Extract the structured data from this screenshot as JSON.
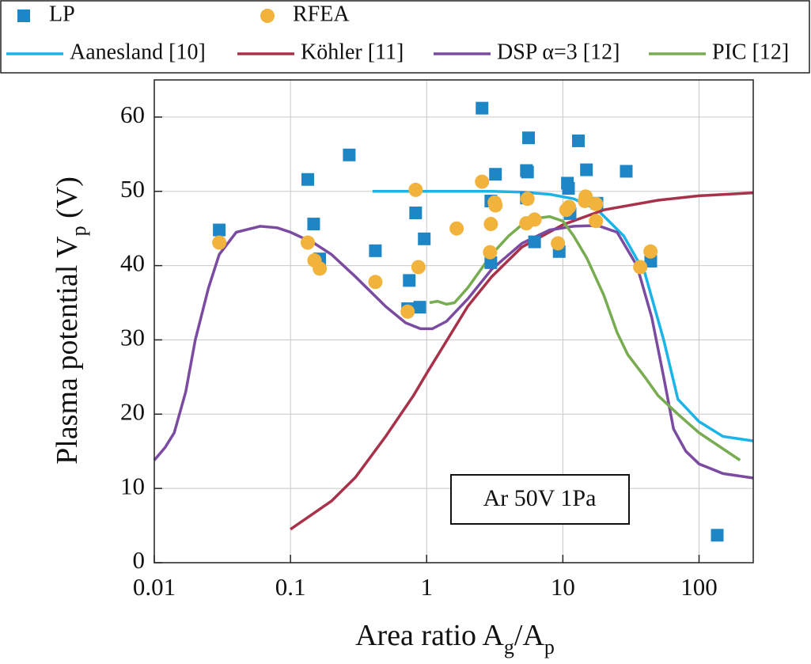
{
  "chart_data": {
    "type": "scatter",
    "xlabel": [
      "Area ratio A",
      "g",
      "/A",
      "p"
    ],
    "ylabel": [
      "Plasma potential V",
      "p",
      " (V)"
    ],
    "annotation": "Ar 50V 1Pa",
    "xscale": "log",
    "xlim": [
      0.01,
      250
    ],
    "ylim": [
      0,
      65
    ],
    "xticks": [
      0.01,
      0.1,
      1,
      10,
      100
    ],
    "yticks": [
      0,
      10,
      20,
      30,
      40,
      50,
      60
    ],
    "grid": true,
    "legend": "top",
    "series": [
      {
        "name": "LP",
        "kind": "square",
        "color": "#1f86c6",
        "x": [
          0.03,
          0.134,
          0.148,
          0.164,
          0.27,
          0.42,
          0.745,
          0.725,
          0.83,
          0.89,
          0.96,
          2.55,
          2.96,
          2.96,
          3.2,
          5.4,
          5.5,
          5.6,
          5.4,
          6.2,
          9.4,
          10.8,
          11,
          11.3,
          13,
          14.9,
          17.8,
          29.2,
          44.2,
          136
        ],
        "values": [
          44.8,
          51.6,
          45.6,
          40.9,
          54.9,
          42.0,
          38.0,
          34.2,
          47.1,
          34.4,
          43.6,
          61.2,
          48.7,
          40.4,
          52.3,
          52.8,
          52.6,
          57.2,
          49.1,
          43.2,
          41.9,
          51.1,
          50.4,
          47.0,
          56.8,
          52.9,
          48.4,
          52.7,
          40.6,
          3.7
        ]
      },
      {
        "name": "RFEA",
        "kind": "circle",
        "color": "#f2b33d",
        "x": [
          0.03,
          0.134,
          0.15,
          0.164,
          0.42,
          0.725,
          0.83,
          0.87,
          1.66,
          2.55,
          2.92,
          2.96,
          3.16,
          3.2,
          5.4,
          5.5,
          6.2,
          9.2,
          10.6,
          11.1,
          14.5,
          14.7,
          17.5,
          17.5,
          37,
          44
        ],
        "values": [
          43.1,
          43.1,
          40.7,
          39.6,
          37.8,
          33.8,
          50.2,
          39.8,
          45.0,
          51.3,
          41.8,
          45.6,
          48.5,
          48.1,
          45.7,
          49.0,
          46.2,
          43.0,
          47.5,
          47.9,
          48.7,
          49.3,
          48.3,
          46.0,
          39.8,
          41.9
        ]
      },
      {
        "name": "Aanesland [10]",
        "kind": "line",
        "color": "#1ab4e8",
        "x": [
          0.4,
          1,
          3,
          5,
          8,
          12,
          18,
          28,
          40,
          55,
          70,
          100,
          150,
          250
        ],
        "values": [
          50,
          50,
          50,
          49.9,
          49.6,
          49,
          47.5,
          44,
          39,
          30,
          22,
          19,
          17,
          16.4
        ]
      },
      {
        "name": "Köhler [11]",
        "kind": "line",
        "color": "#a8324a",
        "x": [
          0.1,
          0.2,
          0.3,
          0.5,
          0.8,
          1,
          2,
          3,
          5,
          10,
          20,
          50,
          100,
          250
        ],
        "values": [
          4.5,
          8.3,
          11.5,
          17,
          22.5,
          25.5,
          34.5,
          38.5,
          42.5,
          45.5,
          47.5,
          48.8,
          49.4,
          49.8
        ]
      },
      {
        "name": "DSP α=3 [12]",
        "kind": "line",
        "color": "#7a4ba0",
        "x": [
          0.01,
          0.012,
          0.014,
          0.017,
          0.02,
          0.025,
          0.03,
          0.04,
          0.06,
          0.08,
          0.1,
          0.15,
          0.2,
          0.3,
          0.5,
          0.7,
          0.9,
          1.1,
          1.4,
          2,
          3,
          5,
          8,
          12,
          18,
          25,
          35,
          45,
          55,
          65,
          80,
          100,
          150,
          250
        ],
        "values": [
          13.8,
          15.5,
          17.5,
          23,
          30,
          37,
          41.5,
          44.5,
          45.3,
          45.1,
          44.5,
          43,
          41.5,
          38.5,
          34.5,
          32.3,
          31.5,
          31.5,
          32.5,
          35.5,
          39.5,
          43,
          44.8,
          45.3,
          45.4,
          44.5,
          40,
          33,
          25,
          18,
          15,
          13.3,
          12,
          11.4
        ]
      },
      {
        "name": "PIC [12]",
        "kind": "line",
        "color": "#78ac50",
        "x": [
          1.05,
          1.2,
          1.4,
          1.6,
          2,
          3,
          4,
          5,
          6,
          8,
          10,
          12,
          15,
          20,
          25,
          30,
          40,
          50,
          70,
          100,
          200
        ],
        "values": [
          35,
          35.2,
          34.8,
          35,
          37,
          41.5,
          44,
          45.5,
          46.3,
          46.6,
          46,
          44,
          41,
          36,
          31,
          28,
          25,
          22.5,
          20,
          17.5,
          13.8
        ]
      }
    ]
  }
}
